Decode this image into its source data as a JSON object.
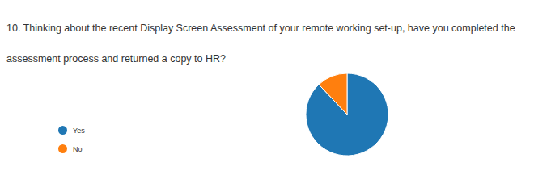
{
  "chart_data": {
    "type": "pie",
    "title": "10. Thinking about the recent Display Screen Assessment of your remote working set-up, have you completed the assessment process and returned a copy to HR?",
    "categories": [
      "Yes",
      "No"
    ],
    "values": [
      88,
      12
    ],
    "colors": [
      "#1f77b4",
      "#ff7f0e"
    ],
    "legend": "left"
  }
}
